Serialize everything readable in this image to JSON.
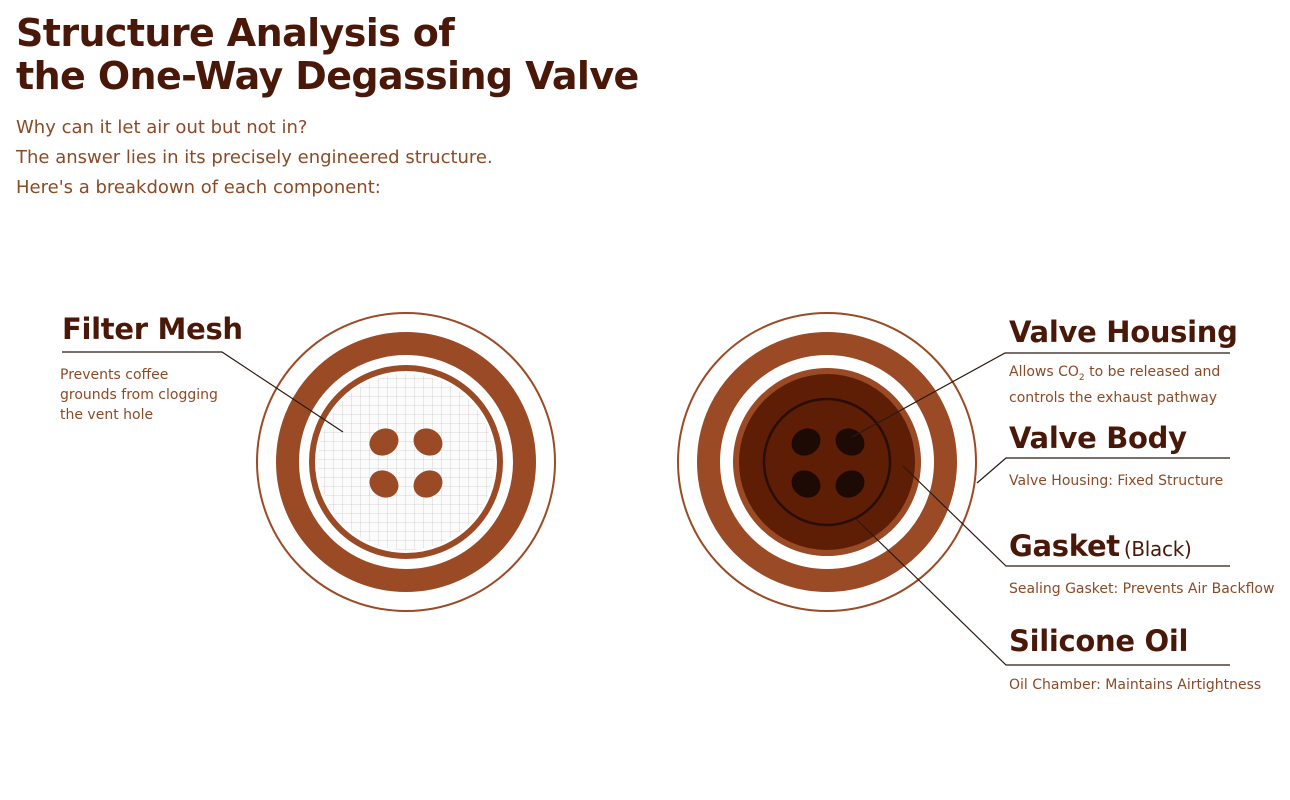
{
  "title": {
    "line1": "Structure Analysis of",
    "line2": "the One-Way Degassing Valve"
  },
  "intro": [
    "Why can it let air out but not in?",
    "The answer lies in its precisely engineered structure.",
    "Here's a breakdown of each component:"
  ],
  "colors": {
    "title": "#4a1808",
    "text": "#8b4a26",
    "ring": "#9a4a24",
    "dark_brown": "#5e1e05",
    "hole": "#1e0a04"
  },
  "components": {
    "filter_mesh": {
      "name": "Filter Mesh",
      "desc": [
        "Prevents coffee",
        "grounds from clogging",
        "the vent hole"
      ]
    },
    "valve_housing": {
      "name": "Valve Housing",
      "desc_prefix": "Allows CO",
      "desc_sub": "2",
      "desc_suffix": " to be released and",
      "desc_line2": "controls the exhaust pathway"
    },
    "valve_body": {
      "name": "Valve Body",
      "desc": "Valve Housing: Fixed Structure"
    },
    "gasket": {
      "name": "Gasket",
      "note": "(Black)",
      "desc": "Sealing Gasket: Prevents Air Backflow"
    },
    "silicone_oil": {
      "name": "Silicone Oil",
      "desc": "Oil Chamber: Maintains Airtightness"
    }
  }
}
